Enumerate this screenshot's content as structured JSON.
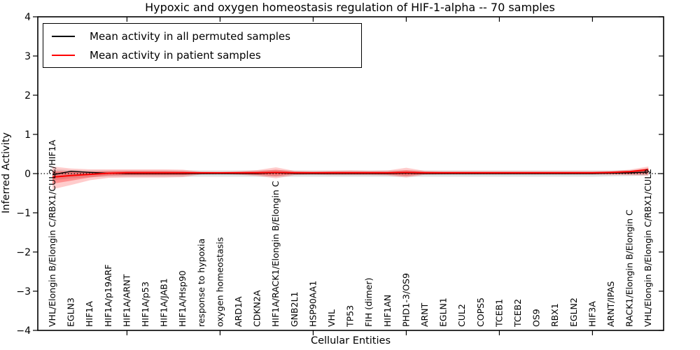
{
  "title": "Hypoxic and oxygen homeostasis regulation of HIF-1-alpha -- 70 samples",
  "legend": {
    "items": [
      {
        "label": "Mean activity in all permuted samples",
        "color": "#000000"
      },
      {
        "label": "Mean activity in patient samples",
        "color": "#ff0000"
      }
    ]
  },
  "chart_data": {
    "type": "line",
    "title": "Hypoxic and oxygen homeostasis regulation of HIF-1-alpha -- 70 samples",
    "xlabel": "Cellular Entities",
    "ylabel": "Inferred Activity",
    "ylim": [
      -4,
      4
    ],
    "yticks": [
      -4,
      -3,
      -2,
      -1,
      0,
      1,
      2,
      3,
      4
    ],
    "xtick_indices": [
      4,
      9,
      14,
      19,
      24,
      29
    ],
    "grid": false,
    "zero_line_style": "dotted",
    "legend_position": "upper left",
    "categories": [
      "VHL/Elongin B/Elongin C/RBX1/CUL2/HIF1A",
      "EGLN3",
      "HIF1A",
      "HIF1A/p19ARF",
      "HIF1A/ARNT",
      "HIF1A/p53",
      "HIF1A/JAB1",
      "HIF1A/Hsp90",
      "response to hypoxia",
      "oxygen homeostasis",
      "ARD1A",
      "CDKN2A",
      "HIF1A/RACK1/Elongin B/Elongin C",
      "GNB2L1",
      "HSP90AA1",
      "VHL",
      "TP53",
      "FIH (dimer)",
      "HIF1AN",
      "PHD1-3/OS9",
      "ARNT",
      "EGLN1",
      "CUL2",
      "COPS5",
      "TCEB1",
      "TCEB2",
      "OS9",
      "RBX1",
      "EGLN2",
      "HIF3A",
      "ARNT/IPAS",
      "RACK1/Elongin B/Elongin C",
      "VHL/Elongin B/Elongin C/RBX1/CUL2"
    ],
    "series": [
      {
        "name": "Mean activity in all permuted samples",
        "color": "#000000",
        "values": [
          -0.03,
          0.06,
          0.03,
          0.01,
          0.0,
          0.0,
          0.0,
          0.0,
          0.0,
          0.0,
          0.0,
          0.0,
          0.02,
          0.0,
          0.0,
          0.0,
          0.0,
          0.0,
          0.0,
          0.01,
          0.0,
          0.0,
          0.0,
          0.0,
          0.0,
          0.0,
          0.0,
          0.0,
          0.0,
          0.0,
          0.01,
          0.02,
          0.04
        ]
      },
      {
        "name": "Mean activity in patient samples",
        "color": "#ff0000",
        "values": [
          -0.09,
          -0.05,
          -0.02,
          0.01,
          0.02,
          0.02,
          0.02,
          0.02,
          0.02,
          0.02,
          0.02,
          0.02,
          0.03,
          0.02,
          0.02,
          0.02,
          0.02,
          0.02,
          0.02,
          0.03,
          0.02,
          0.02,
          0.02,
          0.02,
          0.02,
          0.02,
          0.02,
          0.02,
          0.02,
          0.02,
          0.03,
          0.05,
          0.1
        ]
      }
    ],
    "bands": [
      {
        "name": "permuted-samples-ci",
        "color": "rgba(0,0,0,0.12)",
        "upper": [
          0.11,
          0.09,
          0.08,
          0.08,
          0.08,
          0.08,
          0.08,
          0.08,
          0.08,
          0.08,
          0.08,
          0.08,
          0.09,
          0.08,
          0.08,
          0.08,
          0.08,
          0.08,
          0.08,
          0.08,
          0.08,
          0.08,
          0.08,
          0.08,
          0.08,
          0.08,
          0.08,
          0.08,
          0.08,
          0.08,
          0.08,
          0.09,
          0.11
        ],
        "lower": [
          -0.17,
          -0.12,
          -0.09,
          -0.08,
          -0.08,
          -0.08,
          -0.08,
          -0.08,
          -0.08,
          -0.08,
          -0.08,
          -0.08,
          -0.08,
          -0.08,
          -0.08,
          -0.08,
          -0.08,
          -0.08,
          -0.08,
          -0.08,
          -0.08,
          -0.08,
          -0.08,
          -0.08,
          -0.08,
          -0.08,
          -0.08,
          -0.08,
          -0.08,
          -0.08,
          -0.07,
          -0.06,
          -0.05
        ]
      },
      {
        "name": "patient-samples-ci-outer",
        "color": "rgba(255,0,0,0.20)",
        "upper": [
          0.18,
          0.13,
          0.11,
          0.11,
          0.11,
          0.11,
          0.11,
          0.1,
          0.05,
          0.04,
          0.06,
          0.09,
          0.16,
          0.07,
          0.06,
          0.07,
          0.08,
          0.07,
          0.08,
          0.15,
          0.07,
          0.06,
          0.06,
          0.06,
          0.06,
          0.06,
          0.06,
          0.06,
          0.06,
          0.06,
          0.07,
          0.1,
          0.18
        ],
        "lower": [
          -0.4,
          -0.29,
          -0.17,
          -0.11,
          -0.1,
          -0.1,
          -0.1,
          -0.09,
          -0.02,
          -0.01,
          -0.03,
          -0.06,
          -0.12,
          -0.04,
          -0.03,
          -0.04,
          -0.04,
          -0.04,
          -0.05,
          -0.1,
          -0.03,
          -0.02,
          -0.02,
          -0.02,
          -0.02,
          -0.02,
          -0.02,
          -0.02,
          -0.02,
          -0.02,
          -0.03,
          -0.04,
          -0.05
        ]
      },
      {
        "name": "patient-samples-ci-inner",
        "color": "rgba(255,0,0,0.30)",
        "upper": [
          0.06,
          0.05,
          0.05,
          0.06,
          0.07,
          0.07,
          0.07,
          0.06,
          0.03,
          0.03,
          0.04,
          0.06,
          0.1,
          0.05,
          0.04,
          0.05,
          0.05,
          0.05,
          0.05,
          0.09,
          0.05,
          0.04,
          0.04,
          0.04,
          0.04,
          0.04,
          0.04,
          0.04,
          0.04,
          0.04,
          0.05,
          0.07,
          0.14
        ],
        "lower": [
          -0.26,
          -0.18,
          -0.1,
          -0.05,
          -0.04,
          -0.04,
          -0.04,
          -0.04,
          0.0,
          0.0,
          -0.01,
          -0.03,
          -0.07,
          -0.01,
          -0.01,
          -0.01,
          -0.01,
          -0.01,
          -0.02,
          -0.06,
          -0.01,
          0.0,
          0.0,
          0.0,
          0.0,
          0.0,
          0.0,
          0.0,
          0.0,
          0.0,
          -0.01,
          -0.01,
          -0.01
        ]
      }
    ]
  }
}
